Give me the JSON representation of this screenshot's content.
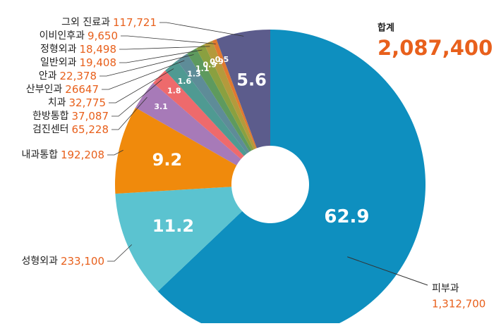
{
  "chart_data": {
    "type": "donut",
    "total_title": "합계",
    "total": "2,087,400",
    "categories": [
      "피부과",
      "성형외과",
      "내과통합",
      "검진센터",
      "한방통합",
      "치과",
      "산부인과",
      "안과",
      "일반외과",
      "정형외과",
      "이비인후과",
      "그외 진료과"
    ],
    "values": [
      1312700,
      233100,
      192208,
      65228,
      37087,
      32775,
      26647,
      22378,
      19408,
      18498,
      9650,
      117721
    ],
    "value_labels": [
      "1,312,700",
      "233,100",
      "192,208",
      "65,228",
      "37,087",
      "32,775",
      "26647",
      "22,378",
      "19,408",
      "18,498",
      "9,650",
      "117,721"
    ],
    "percents": [
      62.9,
      11.2,
      9.2,
      3.1,
      1.8,
      1.6,
      1.3,
      1.1,
      0.9,
      0.9,
      0.5,
      5.6
    ],
    "colors": [
      "#0e8fbf",
      "#5bc3d0",
      "#f08a0c",
      "#a77ab8",
      "#ee6a6c",
      "#4f9a92",
      "#5e8c98",
      "#5e9a5e",
      "#8aa040",
      "#b49a3c",
      "#e07a30",
      "#5c5c8c"
    ]
  }
}
